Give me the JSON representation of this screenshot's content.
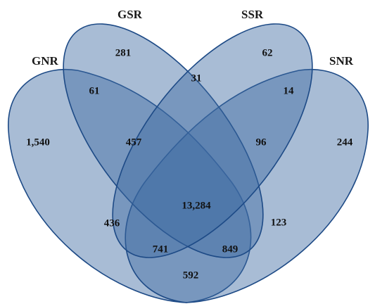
{
  "sets": [
    {
      "key": "GNR",
      "label": "GNR"
    },
    {
      "key": "GSR",
      "label": "GSR"
    },
    {
      "key": "SSR",
      "label": "SSR"
    },
    {
      "key": "SNR",
      "label": "SNR"
    }
  ],
  "regions": {
    "gnr_only": "1,540",
    "gsr_only": "281",
    "ssr_only": "62",
    "snr_only": "244",
    "gnr_gsr": "61",
    "gsr_ssr": "31",
    "ssr_snr": "14",
    "gnr_gsr_ssr": "457",
    "gsr_ssr_snr": "96",
    "all_four": "13,284",
    "gnr_ssr": "436",
    "gsr_snr": "123",
    "gnr_ssr_snr": "741",
    "gnr_gsr_snr": "849",
    "gnr_snr": "592"
  },
  "colors": {
    "fill": "#3f6aa2",
    "stroke": "#1d4a86"
  }
}
